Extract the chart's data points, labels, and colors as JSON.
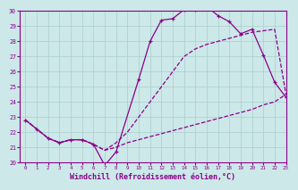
{
  "line1_x": [
    0,
    1,
    2,
    3,
    4,
    5,
    6,
    7,
    8,
    9,
    10,
    11,
    12,
    13,
    14,
    15,
    16,
    17,
    18,
    19,
    20,
    21,
    22,
    23
  ],
  "line1_y": [
    22.8,
    22.2,
    21.6,
    21.3,
    21.5,
    21.5,
    21.2,
    20.8,
    21.3,
    22.0,
    23.0,
    24.0,
    25.0,
    26.0,
    27.0,
    27.5,
    27.8,
    28.0,
    28.2,
    28.4,
    28.6,
    28.7,
    28.8,
    24.5
  ],
  "line2_x": [
    0,
    1,
    2,
    3,
    4,
    5,
    6,
    7,
    8,
    10,
    11,
    12,
    13,
    14,
    15,
    16,
    17,
    18,
    19,
    20,
    21,
    22,
    23
  ],
  "line2_y": [
    22.8,
    22.2,
    21.6,
    21.3,
    21.5,
    21.5,
    21.2,
    19.8,
    20.7,
    25.5,
    28.0,
    29.4,
    29.5,
    30.1,
    30.1,
    30.3,
    29.7,
    29.3,
    28.5,
    28.8,
    27.1,
    25.3,
    24.3
  ],
  "line3_x": [
    0,
    1,
    2,
    3,
    4,
    5,
    6,
    7,
    8,
    9,
    10,
    11,
    12,
    13,
    14,
    15,
    16,
    17,
    18,
    19,
    20,
    21,
    22,
    23
  ],
  "line3_y": [
    22.8,
    22.2,
    21.6,
    21.3,
    21.5,
    21.5,
    21.2,
    20.8,
    21.0,
    21.3,
    21.5,
    21.7,
    21.9,
    22.1,
    22.3,
    22.5,
    22.7,
    22.9,
    23.1,
    23.3,
    23.5,
    23.8,
    24.0,
    24.5
  ],
  "color": "#8B008B",
  "bg_color": "#cce8e8",
  "grid_color": "#aacece",
  "xlabel": "Windchill (Refroidissement éolien,°C)",
  "xlim": [
    -0.5,
    23
  ],
  "ylim": [
    20,
    30
  ],
  "xticks": [
    0,
    1,
    2,
    3,
    4,
    5,
    6,
    7,
    8,
    9,
    10,
    11,
    12,
    13,
    14,
    15,
    16,
    17,
    18,
    19,
    20,
    21,
    22,
    23
  ],
  "yticks": [
    20,
    21,
    22,
    23,
    24,
    25,
    26,
    27,
    28,
    29,
    30
  ]
}
